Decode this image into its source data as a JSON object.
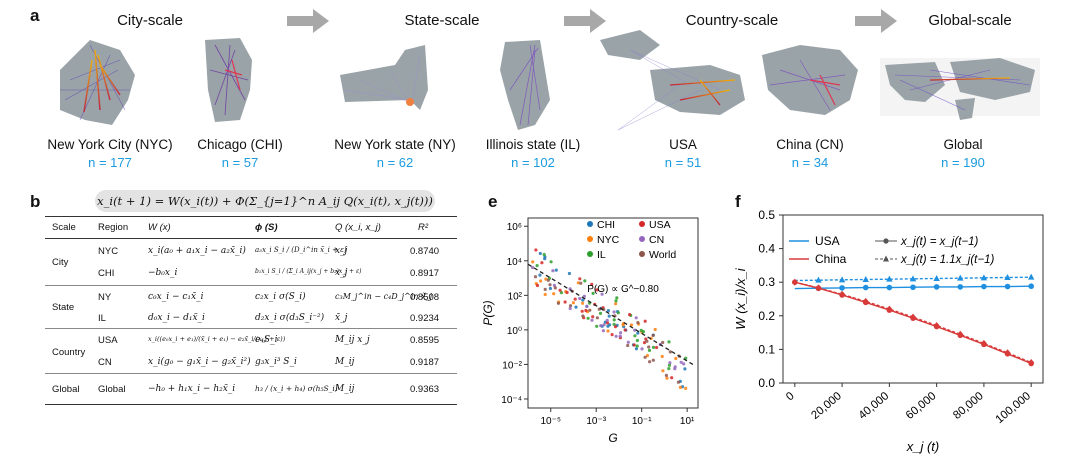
{
  "panel_a": {
    "letter": "a",
    "scales": [
      "City-scale",
      "State-scale",
      "Country-scale",
      "Global-scale"
    ],
    "regions": [
      {
        "name": "New York City (NYC)",
        "n": "n = 177"
      },
      {
        "name": "Chicago (CHI)",
        "n": "n = 57"
      },
      {
        "name": "New York state (NY)",
        "n": "n = 62"
      },
      {
        "name": "Illinois state (IL)",
        "n": "n = 102"
      },
      {
        "name": "USA",
        "n": "n = 51"
      },
      {
        "name": "China (CN)",
        "n": "n = 34"
      },
      {
        "name": "Global",
        "n": "n = 190"
      }
    ]
  },
  "panel_b": {
    "letter": "b",
    "formula": "x_i(t + 1) = W(x_i(t)) + Φ(Σ_{j=1}^n A_ij Q(x_i(t), x_j(t)))",
    "headers": [
      "Scale",
      "Region",
      "W (x)",
      "ϕ (S)",
      "Q (x_i, x_j)",
      "R²"
    ],
    "groups": [
      {
        "scale": "City",
        "rows": [
          {
            "region": "NYC",
            "W": "x_i(a₀ + a₁x_i − a₂x̃_i)",
            "phi": "a₃x_i S_i / (D_i^in x̃_i + ε)",
            "Q": "x_j",
            "R2": "0.8740"
          },
          {
            "region": "CHI",
            "W": "−b₀x_i",
            "phi": "b₁x_i S_i / (Σ_i A_ij(x_j + b₂)x_j + ε)",
            "Q": "x_j",
            "R2": "0.8917"
          }
        ]
      },
      {
        "scale": "State",
        "rows": [
          {
            "region": "NY",
            "W": "c₀x_i − c₁x̃_i",
            "phi": "c₂x_i σ(S_i)",
            "Q": "c₃M_j^in − c₄D_j^in x̃_j",
            "R2": "0.8508"
          },
          {
            "region": "IL",
            "W": "d₀x_i − d₁x̃_i",
            "phi": "d₂x_i σ(d₃S_i⁻²)",
            "Q": "x̃_j",
            "R2": "0.9234"
          }
        ]
      },
      {
        "scale": "Country",
        "rows": [
          {
            "region": "USA",
            "W": "x_i((e₀x_i + e₁)/(x̃_i + e₁) − e₂x̃_i/(x_i + ε))",
            "phi": "e₄S_i",
            "Q": "M_ij x_j",
            "R2": "0.8595"
          },
          {
            "region": "CN",
            "W": "x_i(g₀ − g₁x̃_i − g₂x̃_i²)",
            "phi": "g₃x_i³ S_i",
            "Q": "M_ij",
            "R2": "0.9187"
          }
        ]
      },
      {
        "scale": "Global",
        "rows": [
          {
            "region": "Global",
            "W": "−h₀ + h₁x_i − h₂x̃_i",
            "phi": "h₃ / (x_i + h₄) σ(h₅S_i)",
            "Q": "M_ij",
            "R2": "0.9363"
          }
        ]
      }
    ]
  },
  "chart_data": [
    {
      "panel": "e",
      "type": "scatter",
      "xlabel": "G",
      "ylabel": "P(G)",
      "xscale": "log",
      "yscale": "log",
      "xlim": [
        1e-06,
        30
      ],
      "ylim": [
        3e-05,
        3000000.0
      ],
      "x_ticks": [
        "10⁻⁵",
        "10⁻³",
        "10⁻¹",
        "10¹"
      ],
      "y_ticks": [
        "10⁶",
        "10⁴",
        "10²",
        "10⁰",
        "10⁻²",
        "10⁻⁴"
      ],
      "annotation": "P(G) ∝ G^−0.80",
      "legend_position": "top-right",
      "series": [
        {
          "name": "CHI",
          "color": "#1f77b4"
        },
        {
          "name": "NYC",
          "color": "#ff7f0e"
        },
        {
          "name": "IL",
          "color": "#2ca02c"
        },
        {
          "name": "USA",
          "color": "#d62728"
        },
        {
          "name": "CN",
          "color": "#9467bd"
        },
        {
          "name": "World",
          "color": "#8c564b"
        }
      ],
      "fit": {
        "exponent": -0.8,
        "x_range": [
          1e-06,
          20
        ],
        "y_at_1e-5": 1000
      }
    },
    {
      "panel": "f",
      "type": "line",
      "xlabel": "x_j (t)",
      "ylabel": "W (x_i)/x_i",
      "xlim": [
        -5000,
        105000
      ],
      "ylim": [
        0,
        0.5
      ],
      "x_ticks": [
        0,
        20000,
        40000,
        60000,
        80000,
        100000
      ],
      "x_tick_labels": [
        "0",
        "20,000",
        "40,000",
        "60,000",
        "80,000",
        "100,000"
      ],
      "y_ticks": [
        0,
        0.1,
        0.2,
        0.3,
        0.4,
        0.5
      ],
      "legend": {
        "regions": [
          "USA",
          "China"
        ],
        "conditions": [
          "x_j(t) = x_j(t−1)",
          "x_j(t) = 1.1x_j(t−1)"
        ]
      },
      "series": [
        {
          "name": "USA",
          "color": "#1f8fe0",
          "condition": "x_j(t) = x_j(t−1)",
          "marker": "circle",
          "x": [
            0,
            10000,
            20000,
            30000,
            40000,
            50000,
            60000,
            70000,
            80000,
            90000,
            100000
          ],
          "y": [
            0.281,
            0.282,
            0.283,
            0.284,
            0.284,
            0.285,
            0.286,
            0.286,
            0.287,
            0.287,
            0.288
          ]
        },
        {
          "name": "USA",
          "color": "#1f8fe0",
          "condition": "x_j(t) = 1.1x_j(t−1)",
          "marker": "triangle",
          "x": [
            0,
            10000,
            20000,
            30000,
            40000,
            50000,
            60000,
            70000,
            80000,
            90000,
            100000
          ],
          "y": [
            0.305,
            0.306,
            0.307,
            0.308,
            0.309,
            0.31,
            0.311,
            0.312,
            0.313,
            0.314,
            0.315
          ]
        },
        {
          "name": "China",
          "color": "#d83a3a",
          "condition": "x_j(t) = x_j(t−1)",
          "marker": "circle",
          "x": [
            0,
            10000,
            20000,
            30000,
            40000,
            50000,
            60000,
            70000,
            80000,
            90000,
            100000
          ],
          "y": [
            0.3,
            0.282,
            0.262,
            0.24,
            0.217,
            0.193,
            0.168,
            0.142,
            0.115,
            0.087,
            0.058
          ]
        },
        {
          "name": "China",
          "color": "#d83a3a",
          "condition": "x_j(t) = 1.1x_j(t−1)",
          "marker": "diamond",
          "x": [
            0,
            10000,
            20000,
            30000,
            40000,
            50000,
            60000,
            70000,
            80000,
            90000,
            100000
          ],
          "y": [
            0.3,
            0.283,
            0.264,
            0.243,
            0.22,
            0.196,
            0.171,
            0.145,
            0.118,
            0.09,
            0.061
          ]
        }
      ]
    }
  ]
}
